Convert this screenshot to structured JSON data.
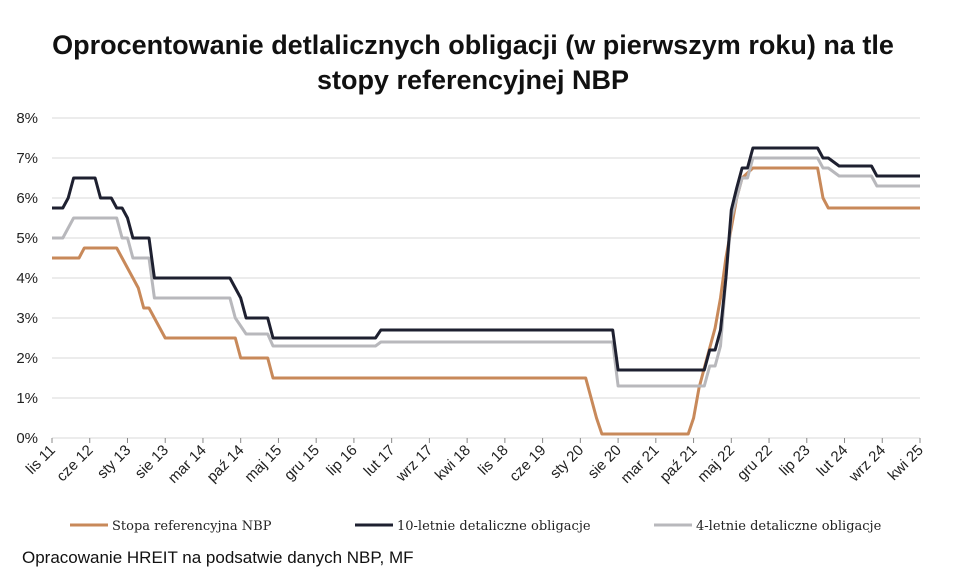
{
  "chart_data": {
    "type": "line",
    "title_line1": "Oprocentowanie detlalicznych obligacji (w pierwszym roku) na tle",
    "title_line2": "stopy referencyjnej NBP",
    "source": "Opracowanie HREIT na podsatwie danych NBP, MF",
    "ylim": [
      0,
      8
    ],
    "yticks": [
      0,
      1,
      2,
      3,
      4,
      5,
      6,
      7,
      8
    ],
    "ytick_labels": [
      "0%",
      "1%",
      "2%",
      "3%",
      "4%",
      "5%",
      "6%",
      "7%",
      "8%"
    ],
    "xticks": [
      "lis 11",
      "cze 12",
      "sty 13",
      "sie 13",
      "mar 14",
      "paź 14",
      "maj 15",
      "gru 15",
      "lip 16",
      "lut 17",
      "wrz 17",
      "kwi 18",
      "lis 18",
      "cze 19",
      "sty 20",
      "sie 20",
      "mar 21",
      "paź 21",
      "maj 22",
      "gru 22",
      "lip 23",
      "lut 24",
      "wrz 24",
      "kwi 25"
    ],
    "grid": true,
    "legend_position": "bottom",
    "colors": {
      "ref": "#c8895a",
      "ten": "#1e2030",
      "four": "#b8b8bc",
      "grid": "#d9d9d9"
    },
    "series": [
      {
        "key": "ref",
        "name": "Stopa referencyjna NBP",
        "points": [
          [
            "lis 11",
            4.5
          ],
          [
            "sty 12",
            4.5
          ],
          [
            "kwi 12",
            4.5
          ],
          [
            "maj 12",
            4.75
          ],
          [
            "lis 12",
            4.75
          ],
          [
            "gru 12",
            4.5
          ],
          [
            "sty 13",
            4.25
          ],
          [
            "lut 13",
            4.0
          ],
          [
            "mar 13",
            3.75
          ],
          [
            "kwi 13",
            3.25
          ],
          [
            "maj 13",
            3.25
          ],
          [
            "cze 13",
            3.0
          ],
          [
            "lip 13",
            2.75
          ],
          [
            "sie 13",
            2.5
          ],
          [
            "wrz 14",
            2.5
          ],
          [
            "paź 14",
            2.0
          ],
          [
            "mar 15",
            2.0
          ],
          [
            "kwi 15",
            1.5
          ],
          [
            "lut 20",
            1.5
          ],
          [
            "mar 20",
            1.0
          ],
          [
            "kwi 20",
            0.5
          ],
          [
            "maj 20",
            0.1
          ],
          [
            "wrz 21",
            0.1
          ],
          [
            "paź 21",
            0.5
          ],
          [
            "lis 21",
            1.25
          ],
          [
            "gru 21",
            1.75
          ],
          [
            "sty 22",
            2.25
          ],
          [
            "lut 22",
            2.75
          ],
          [
            "mar 22",
            3.5
          ],
          [
            "kwi 22",
            4.5
          ],
          [
            "maj 22",
            5.25
          ],
          [
            "cze 22",
            6.0
          ],
          [
            "lip 22",
            6.5
          ],
          [
            "wrz 22",
            6.75
          ],
          [
            "wrz 23",
            6.75
          ],
          [
            "paź 23",
            6.0
          ],
          [
            "lis 23",
            5.75
          ],
          [
            "kwi 25",
            5.75
          ]
        ]
      },
      {
        "key": "ten",
        "name": "10-letnie detaliczne obligacje",
        "points": [
          [
            "lis 11",
            5.75
          ],
          [
            "sty 12",
            5.75
          ],
          [
            "lut 12",
            6.0
          ],
          [
            "mar 12",
            6.5
          ],
          [
            "lip 12",
            6.5
          ],
          [
            "sie 12",
            6.0
          ],
          [
            "paź 12",
            6.0
          ],
          [
            "lis 12",
            5.75
          ],
          [
            "gru 12",
            5.75
          ],
          [
            "sty 13",
            5.5
          ],
          [
            "lut 13",
            5.0
          ],
          [
            "maj 13",
            5.0
          ],
          [
            "cze 13",
            4.0
          ],
          [
            "sie 14",
            4.0
          ],
          [
            "paź 14",
            3.5
          ],
          [
            "lis 14",
            3.0
          ],
          [
            "mar 15",
            3.0
          ],
          [
            "kwi 15",
            2.5
          ],
          [
            "lis 16",
            2.5
          ],
          [
            "gru 16",
            2.7
          ],
          [
            "lip 20",
            2.7
          ],
          [
            "sie 20",
            1.7
          ],
          [
            "lis 21",
            1.7
          ],
          [
            "gru 21",
            1.7
          ],
          [
            "sty 22",
            2.2
          ],
          [
            "lut 22",
            2.2
          ],
          [
            "mar 22",
            2.7
          ],
          [
            "kwi 22",
            4.0
          ],
          [
            "maj 22",
            5.7
          ],
          [
            "cze 22",
            6.25
          ],
          [
            "lip 22",
            6.75
          ],
          [
            "sie 22",
            6.75
          ],
          [
            "wrz 22",
            7.25
          ],
          [
            "wrz 23",
            7.25
          ],
          [
            "paź 23",
            7.0
          ],
          [
            "lis 23",
            7.0
          ],
          [
            "sty 24",
            6.8
          ],
          [
            "lip 24",
            6.8
          ],
          [
            "sie 24",
            6.55
          ],
          [
            "kwi 25",
            6.55
          ]
        ]
      },
      {
        "key": "four",
        "name": "4-letnie detaliczne obligacje",
        "points": [
          [
            "lis 11",
            5.0
          ],
          [
            "sty 12",
            5.0
          ],
          [
            "lut 12",
            5.25
          ],
          [
            "mar 12",
            5.5
          ],
          [
            "lis 12",
            5.5
          ],
          [
            "gru 12",
            5.0
          ],
          [
            "sty 13",
            5.0
          ],
          [
            "lut 13",
            4.5
          ],
          [
            "maj 13",
            4.5
          ],
          [
            "cze 13",
            3.5
          ],
          [
            "sie 14",
            3.5
          ],
          [
            "wrz 14",
            3.0
          ],
          [
            "paź 14",
            2.8
          ],
          [
            "lis 14",
            2.6
          ],
          [
            "mar 15",
            2.6
          ],
          [
            "kwi 15",
            2.3
          ],
          [
            "lis 16",
            2.3
          ],
          [
            "gru 16",
            2.4
          ],
          [
            "lip 20",
            2.4
          ],
          [
            "sie 20",
            1.3
          ],
          [
            "lis 21",
            1.3
          ],
          [
            "gru 21",
            1.3
          ],
          [
            "sty 22",
            1.8
          ],
          [
            "lut 22",
            1.8
          ],
          [
            "mar 22",
            2.3
          ],
          [
            "kwi 22",
            4.0
          ],
          [
            "maj 22",
            5.5
          ],
          [
            "cze 22",
            6.0
          ],
          [
            "lip 22",
            6.5
          ],
          [
            "sie 22",
            6.5
          ],
          [
            "wrz 22",
            7.0
          ],
          [
            "wrz 23",
            7.0
          ],
          [
            "paź 23",
            6.75
          ],
          [
            "lis 23",
            6.75
          ],
          [
            "sty 24",
            6.55
          ],
          [
            "lip 24",
            6.55
          ],
          [
            "sie 24",
            6.3
          ],
          [
            "kwi 25",
            6.3
          ]
        ]
      }
    ]
  }
}
